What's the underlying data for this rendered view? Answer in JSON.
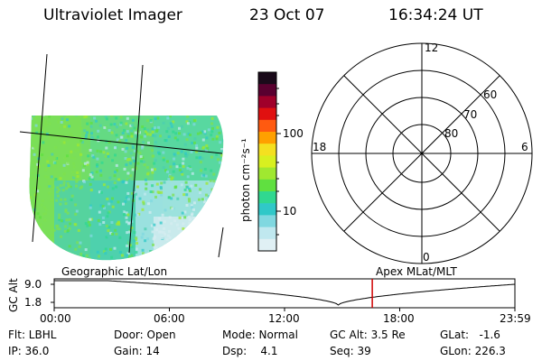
{
  "header": {
    "instrument": "Ultraviolet Imager",
    "date": "23 Oct 07",
    "time": "16:34:24 UT"
  },
  "colorbar": {
    "unit_label": "photon cm⁻²s⁻¹",
    "ticks": [
      "100",
      "10"
    ],
    "colors": [
      "#1a0a1a",
      "#5a0030",
      "#a0002a",
      "#e01010",
      "#ff5a10",
      "#ffa000",
      "#f4e020",
      "#d8f020",
      "#a0e830",
      "#60e040",
      "#30d890",
      "#30c8c8",
      "#80d8e0",
      "#c0e8ef",
      "#e0f0f4"
    ]
  },
  "image_panel": {
    "label_left": "Geographic Lat/Lon",
    "label_right": "Apex MLat/MLT"
  },
  "polar_grid": {
    "mlt_labels": {
      "top": "12",
      "left": "18",
      "right": "6",
      "bottom": "0"
    },
    "lat_labels": [
      "60",
      "70",
      "80"
    ]
  },
  "orbit_plot": {
    "ylabel": "GC Alt",
    "yticks": [
      "9.0",
      "1.8"
    ],
    "xticks": [
      "00:00",
      "06:00",
      "12:00",
      "18:00",
      "23:59"
    ],
    "current_time_marker_hour": 16.57,
    "marker_color": "#d00000"
  },
  "info": {
    "flt": "Flt: LBHL",
    "ip": "IP: 36.0",
    "door": "Door: Open",
    "gain": "Gain: 14",
    "mode": "Mode: Normal",
    "dsp": "Dsp:    4.1",
    "gcalt": "GC Alt: 3.5 Re",
    "seq": "Seq: 39",
    "glat": "GLat:   -1.6",
    "glon": "GLon: 226.3"
  }
}
